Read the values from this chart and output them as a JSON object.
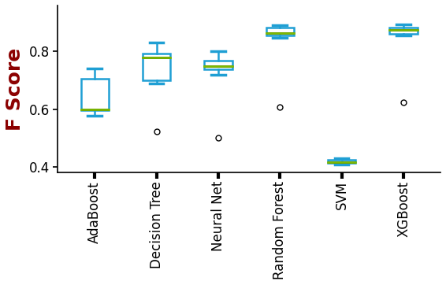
{
  "categories": [
    "AdaBoost",
    "Decision Tree",
    "Neural Net",
    "Random Forest",
    "SVM",
    "XGBoost"
  ],
  "box_data": {
    "AdaBoost": {
      "whislo": 0.578,
      "q1": 0.595,
      "med": 0.598,
      "q3": 0.705,
      "whishi": 0.742,
      "fliers": [],
      "mean": 0.6
    },
    "Decision Tree": {
      "whislo": 0.69,
      "q1": 0.7,
      "med": 0.778,
      "q3": 0.793,
      "whishi": 0.832,
      "fliers": [
        0.522
      ],
      "mean": 0.778
    },
    "Neural Net": {
      "whislo": 0.72,
      "q1": 0.738,
      "med": 0.748,
      "q3": 0.768,
      "whishi": 0.8,
      "fliers": [
        0.5
      ],
      "mean": 0.75
    },
    "Random Forest": {
      "whislo": 0.848,
      "q1": 0.855,
      "med": 0.865,
      "q3": 0.882,
      "whishi": 0.892,
      "fliers": [
        0.608
      ],
      "mean": 0.863
    },
    "SVM": {
      "whislo": 0.408,
      "q1": 0.412,
      "med": 0.415,
      "q3": 0.423,
      "whishi": 0.43,
      "fliers": [],
      "mean": 0.415
    },
    "XGBoost": {
      "whislo": 0.855,
      "q1": 0.862,
      "med": 0.875,
      "q3": 0.883,
      "whishi": 0.893,
      "fliers": [
        0.622
      ],
      "mean": 0.875
    }
  },
  "box_color": "#1f9fd4",
  "median_color": "#000000",
  "mean_color": "#7dba00",
  "flier_color": "#000000",
  "whisker_color": "#1f9fd4",
  "cap_color": "#1f9fd4",
  "ylabel": "F Score",
  "ylabel_color": "#8b0000",
  "ylim": [
    0.38,
    0.96
  ],
  "yticks": [
    0.4,
    0.6,
    0.8
  ],
  "background_color": "#ffffff",
  "tick_label_fontsize": 12,
  "ylabel_fontsize": 18
}
